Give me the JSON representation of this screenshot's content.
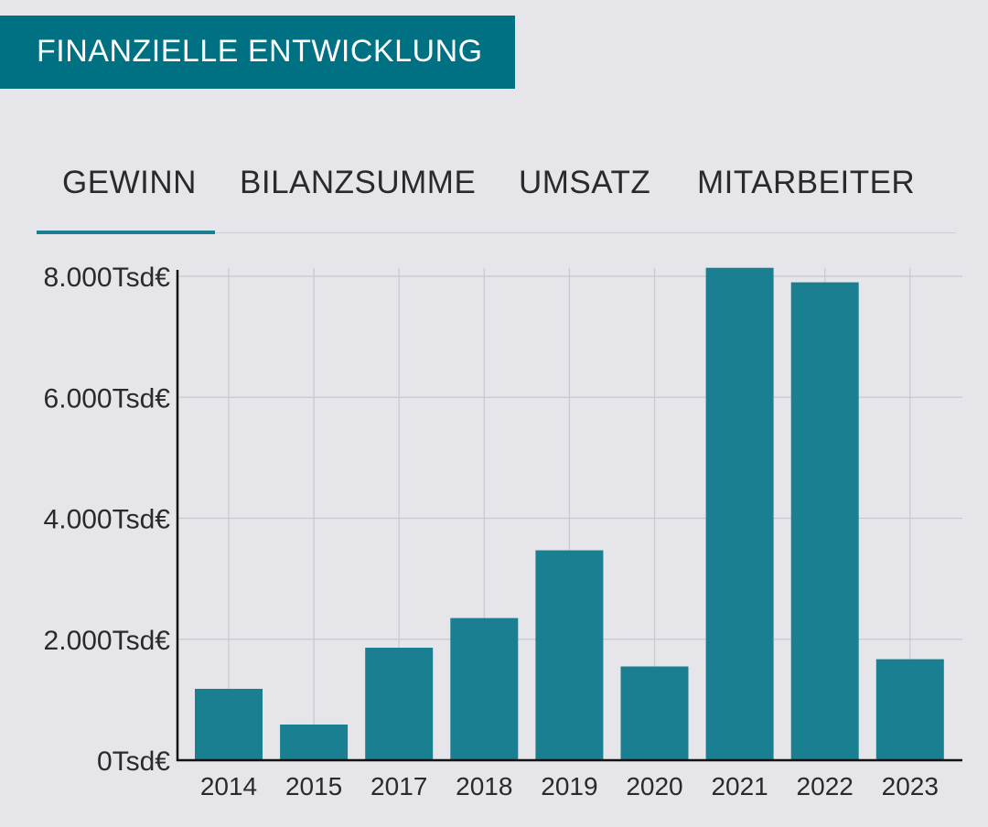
{
  "header": {
    "title": "FINANZIELLE ENTWICKLUNG"
  },
  "tabs": [
    {
      "label": "GEWINN",
      "active": true
    },
    {
      "label": "BILANZSUMME",
      "active": false
    },
    {
      "label": "UMSATZ",
      "active": false
    },
    {
      "label": "MITARBEITER",
      "active": false
    }
  ],
  "colors": {
    "accent": "#007083",
    "bar": "#1a8091",
    "background": "#e6e5ea"
  },
  "chart_data": {
    "type": "bar",
    "categories": [
      "2014",
      "2015",
      "2017",
      "2018",
      "2019",
      "2020",
      "2021",
      "2022",
      "2023"
    ],
    "values": [
      1180,
      590,
      1860,
      2350,
      3470,
      1550,
      8140,
      7900,
      1670
    ],
    "ylim": [
      0,
      8000
    ],
    "yticks": [
      0,
      2000,
      4000,
      6000,
      8000
    ],
    "ytick_labels": [
      "0Tsd€",
      "2.000Tsd€",
      "4.000Tsd€",
      "6.000Tsd€",
      "8.000Tsd€"
    ],
    "grid": true
  }
}
